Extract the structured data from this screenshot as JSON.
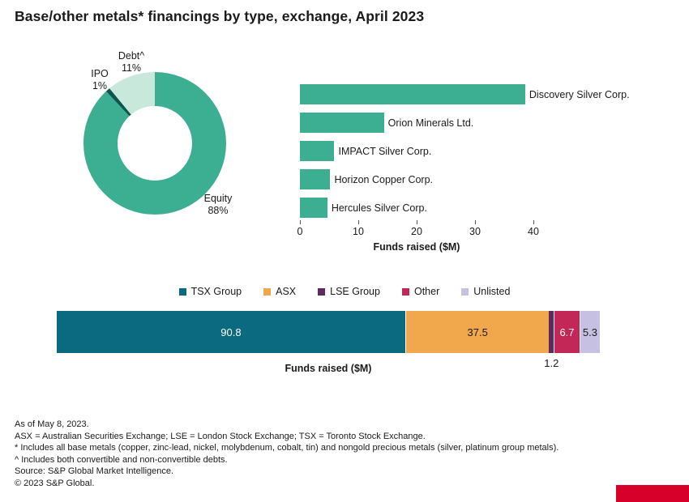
{
  "title": "Base/other metals* financings by type, exchange, April 2023",
  "footnotes": [
    "As of May 8, 2023.",
    "ASX = Australian Securities Exchange; LSE = London Stock Exchange; TSX = Toronto Stock Exchange.",
    "* Includes all base metals (copper, zinc-lead, nickel, molybdenum, cobalt, tin) and nongold precious metals (silver, platinum group metals).",
    "^ Includes both convertible and non-convertible debts.",
    "Source: S&P Global Market Intelligence.",
    "© 2023 S&P Global."
  ],
  "brand": {
    "color": "#D6002A"
  },
  "chart_data": [
    {
      "type": "pie",
      "subtype": "donut",
      "start": "top",
      "direction": "clockwise",
      "segments": [
        {
          "label": "Equity",
          "pct": "88%",
          "value": 88,
          "color": "#3CAE92"
        },
        {
          "label": "IPO",
          "pct": "1%",
          "value": 1,
          "color": "#0B564E"
        },
        {
          "label": "Debt^",
          "pct": "11%",
          "value": 11,
          "color": "#C9E8DC"
        }
      ]
    },
    {
      "type": "bar",
      "orientation": "horizontal",
      "categories": [
        "Discovery Silver Corp.",
        "Orion Minerals Ltd.",
        "IMPACT Silver Corp.",
        "Horizon Copper Corp.",
        "Hercules Silver Corp."
      ],
      "values": [
        38.6,
        14.4,
        5.9,
        5.2,
        4.7
      ],
      "bar_color": "#3CAE92",
      "xlim": [
        0,
        40
      ],
      "xticks": [
        0,
        10,
        20,
        30,
        40
      ],
      "xlabel": "Funds raised ($M)",
      "grid": false
    },
    {
      "type": "bar",
      "subtype": "stacked-horizontal",
      "xlabel": "Funds raised ($M)",
      "series": [
        {
          "name": "TSX Group",
          "value": 90.8,
          "label": "90.8",
          "color": "#0B6980",
          "text_color": "#FFFFFF",
          "label_position": "inside"
        },
        {
          "name": "ASX",
          "value": 37.5,
          "label": "37.5",
          "color": "#F1A84D",
          "text_color": "#1A1A1A",
          "label_position": "inside"
        },
        {
          "name": "LSE Group",
          "value": 1.2,
          "label": "1.2",
          "color": "#5D2960",
          "text_color": "#1A1A1A",
          "label_position": "below"
        },
        {
          "name": "Other",
          "value": 6.7,
          "label": "6.7",
          "color": "#C22757",
          "text_color": "#FFFFFF",
          "label_position": "inside"
        },
        {
          "name": "Unlisted",
          "value": 5.3,
          "label": "5.3",
          "color": "#C6C0E2",
          "text_color": "#1A1A1A",
          "label_position": "inside"
        }
      ]
    }
  ]
}
